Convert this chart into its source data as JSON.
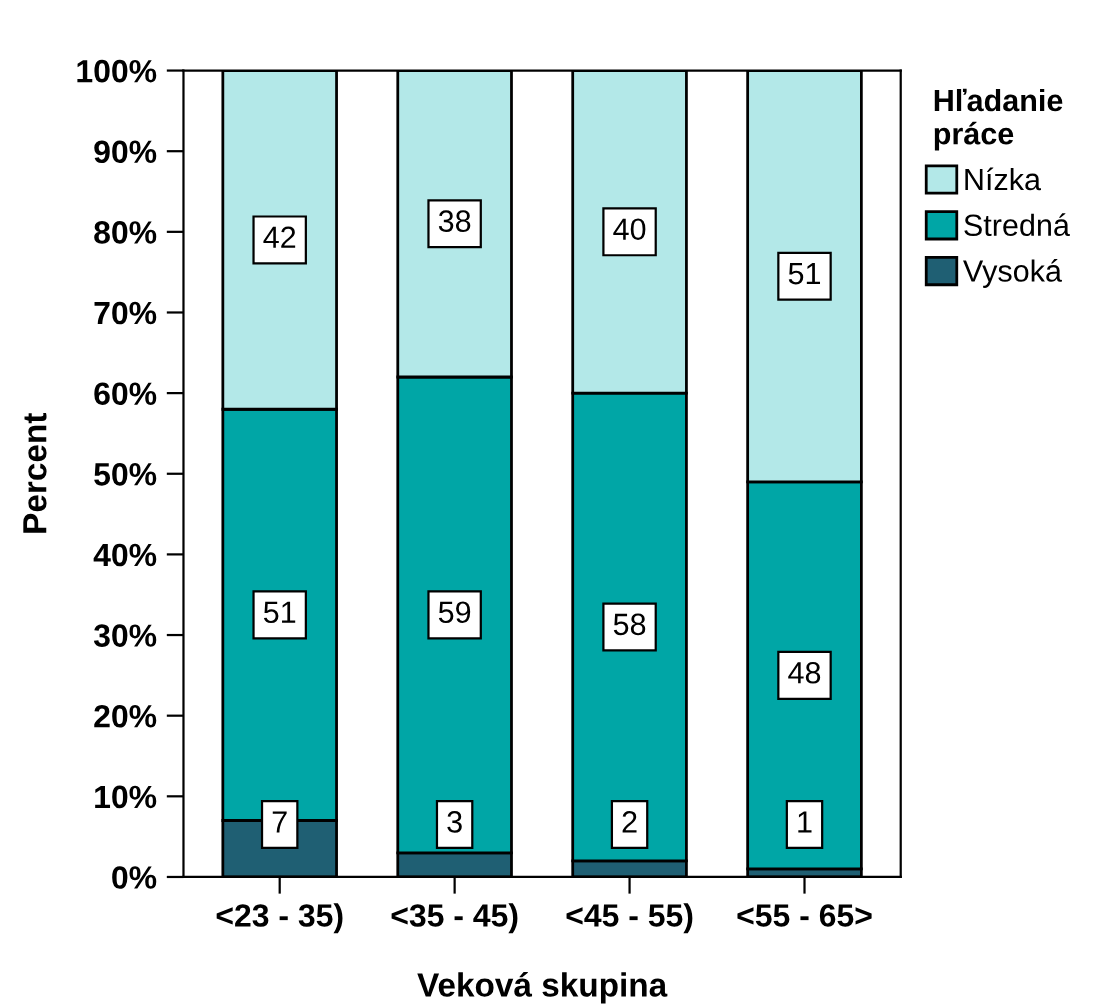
{
  "chart_data": {
    "type": "bar",
    "stacked": true,
    "xlabel": "Veková skupina",
    "ylabel": "Percent",
    "legend_title": "Hľadanie\npráce",
    "legend": "right",
    "categories": [
      "<23 - 35)",
      "<35 - 45)",
      "<45 - 55)",
      "<55 - 65>"
    ],
    "series": [
      {
        "name": "Vysoká",
        "color": "#1f5f73",
        "values": [
          7,
          3,
          2,
          1
        ]
      },
      {
        "name": "Stredná",
        "color": "#00a6a6",
        "values": [
          51,
          59,
          58,
          48
        ]
      },
      {
        "name": "Nízka",
        "color": "#b3e8e8",
        "values": [
          42,
          38,
          40,
          51
        ]
      }
    ],
    "data_labels": true,
    "ylim": [
      0,
      100
    ],
    "yticks": [
      {
        "value": 0,
        "label": "0%"
      },
      {
        "value": 10,
        "label": "10%"
      },
      {
        "value": 20,
        "label": "20%"
      },
      {
        "value": 30,
        "label": "30%"
      },
      {
        "value": 40,
        "label": "40%"
      },
      {
        "value": 50,
        "label": "50%"
      },
      {
        "value": 60,
        "label": "60%"
      },
      {
        "value": 70,
        "label": "70%"
      },
      {
        "value": 80,
        "label": "80%"
      },
      {
        "value": 90,
        "label": "90%"
      },
      {
        "value": 100,
        "label": "100%"
      }
    ],
    "grid": false
  }
}
